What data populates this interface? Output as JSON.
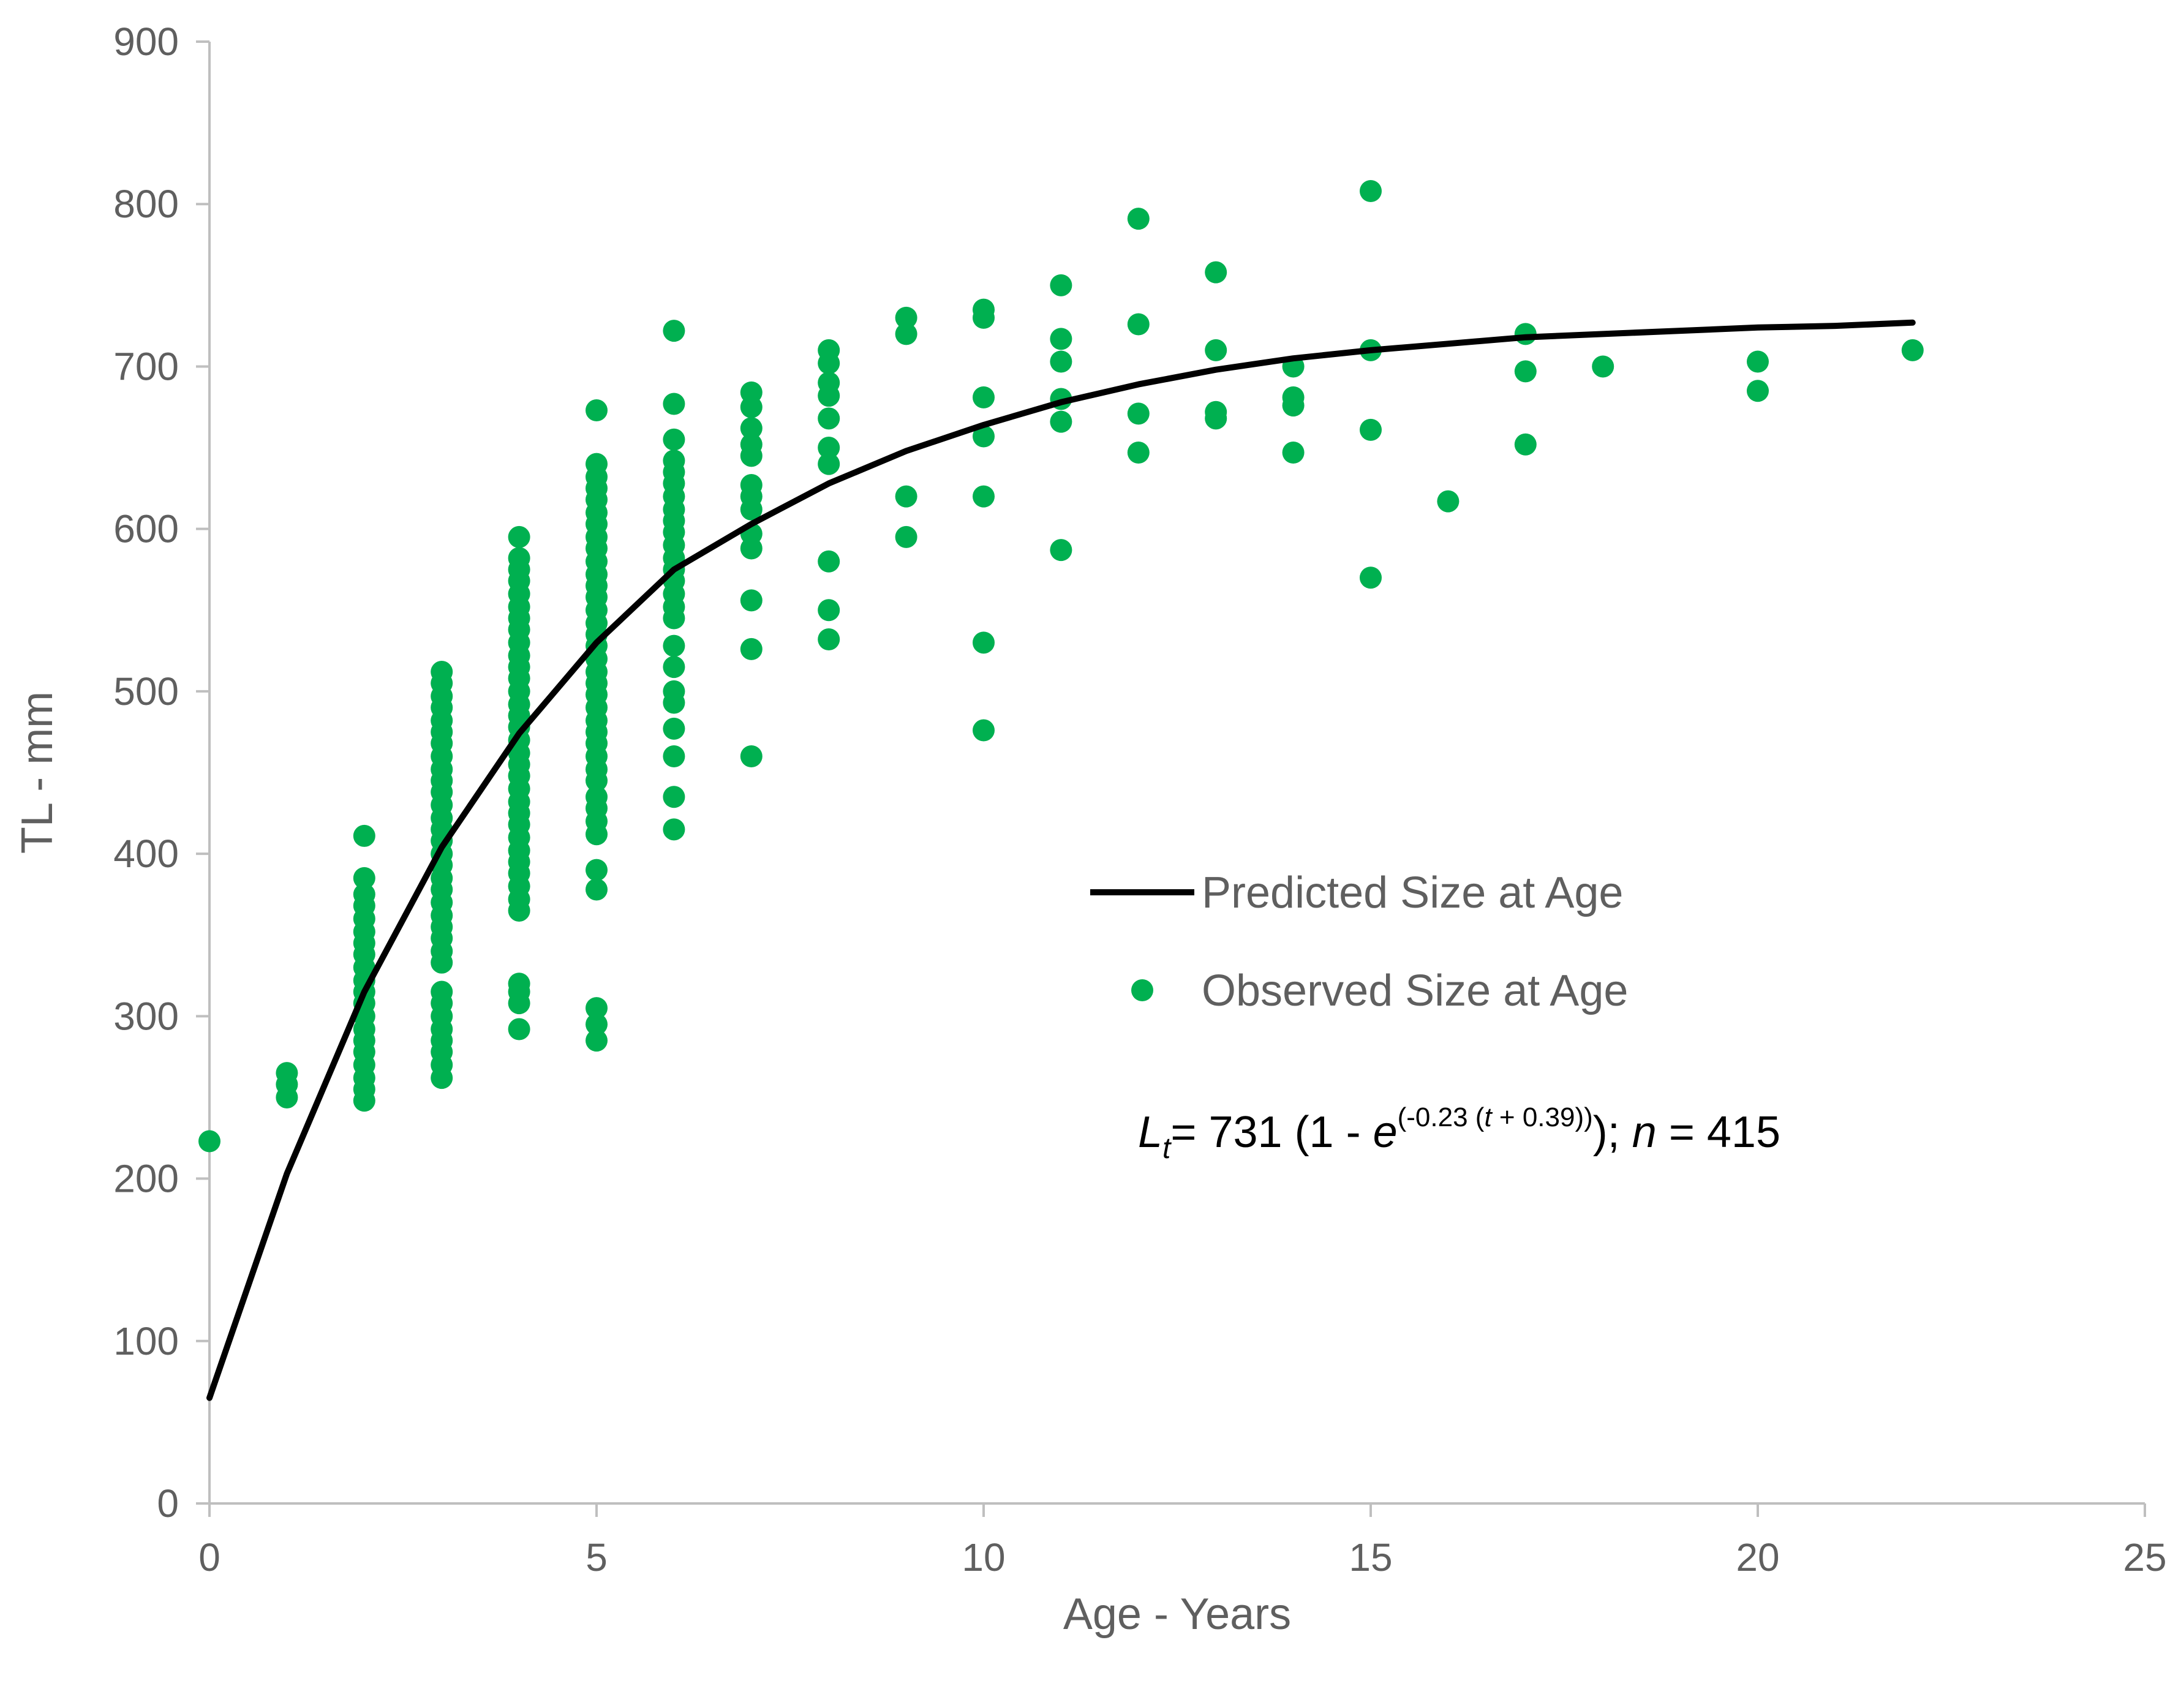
{
  "chart_data": {
    "type": "scatter",
    "title": "",
    "xlabel": "Age - Years",
    "ylabel": "TL - mm",
    "xlim": [
      0,
      25
    ],
    "ylim": [
      0,
      900
    ],
    "x_ticks": [
      "0",
      "5",
      "10",
      "15",
      "20",
      "25"
    ],
    "y_ticks": [
      "0",
      "100",
      "200",
      "300",
      "400",
      "500",
      "600",
      "700",
      "800",
      "900"
    ],
    "grid": false,
    "legend_position": "center-right",
    "colors": {
      "observed": "#00b050",
      "predicted": "#000000",
      "axis": "#bfbfbf",
      "text": "#5f5f5f"
    },
    "legend": {
      "predicted_label": "Predicted Size at Age",
      "observed_label": "Observed Size at Age"
    },
    "equation": {
      "lhs_var": "L",
      "lhs_sub": "t",
      "mid": "= 731 (1 - ",
      "base": "e",
      "exponent_a": "(-0.23 (",
      "exponent_t": "t",
      "exponent_b": " + 0.39))",
      "tail": "); ",
      "n_var": "n",
      "n_value": " = 415"
    },
    "series": [
      {
        "name": "Predicted Size at Age",
        "kind": "line",
        "x": [
          0,
          1,
          2,
          3,
          4,
          5,
          6,
          7,
          8,
          9,
          10,
          11,
          12,
          13,
          14,
          15,
          16,
          17,
          18,
          19,
          20,
          21,
          22
        ],
        "y": [
          65,
          203,
          315,
          404,
          474,
          530,
          575,
          603,
          628,
          648,
          664,
          678,
          689,
          698,
          705,
          710,
          714,
          718,
          720,
          722,
          724,
          725,
          727
        ]
      },
      {
        "name": "Observed Size at Age",
        "kind": "scatter",
        "points": [
          [
            0,
            223
          ],
          [
            1,
            250
          ],
          [
            1,
            258
          ],
          [
            1,
            265
          ],
          [
            2,
            248
          ],
          [
            2,
            255
          ],
          [
            2,
            262
          ],
          [
            2,
            270
          ],
          [
            2,
            278
          ],
          [
            2,
            285
          ],
          [
            2,
            292
          ],
          [
            2,
            300
          ],
          [
            2,
            308
          ],
          [
            2,
            315
          ],
          [
            2,
            322
          ],
          [
            2,
            330
          ],
          [
            2,
            338
          ],
          [
            2,
            345
          ],
          [
            2,
            352
          ],
          [
            2,
            360
          ],
          [
            2,
            368
          ],
          [
            2,
            375
          ],
          [
            2,
            385
          ],
          [
            2,
            411
          ],
          [
            3,
            262
          ],
          [
            3,
            270
          ],
          [
            3,
            278
          ],
          [
            3,
            285
          ],
          [
            3,
            292
          ],
          [
            3,
            300
          ],
          [
            3,
            308
          ],
          [
            3,
            315
          ],
          [
            3,
            333
          ],
          [
            3,
            340
          ],
          [
            3,
            348
          ],
          [
            3,
            355
          ],
          [
            3,
            362
          ],
          [
            3,
            370
          ],
          [
            3,
            378
          ],
          [
            3,
            385
          ],
          [
            3,
            393
          ],
          [
            3,
            400
          ],
          [
            3,
            408
          ],
          [
            3,
            415
          ],
          [
            3,
            422
          ],
          [
            3,
            430
          ],
          [
            3,
            438
          ],
          [
            3,
            445
          ],
          [
            3,
            452
          ],
          [
            3,
            460
          ],
          [
            3,
            468
          ],
          [
            3,
            475
          ],
          [
            3,
            482
          ],
          [
            3,
            490
          ],
          [
            3,
            497
          ],
          [
            3,
            505
          ],
          [
            3,
            512
          ],
          [
            4,
            292
          ],
          [
            4,
            308
          ],
          [
            4,
            315
          ],
          [
            4,
            320
          ],
          [
            4,
            365
          ],
          [
            4,
            372
          ],
          [
            4,
            380
          ],
          [
            4,
            388
          ],
          [
            4,
            395
          ],
          [
            4,
            402
          ],
          [
            4,
            410
          ],
          [
            4,
            418
          ],
          [
            4,
            425
          ],
          [
            4,
            432
          ],
          [
            4,
            440
          ],
          [
            4,
            448
          ],
          [
            4,
            455
          ],
          [
            4,
            462
          ],
          [
            4,
            470
          ],
          [
            4,
            478
          ],
          [
            4,
            485
          ],
          [
            4,
            492
          ],
          [
            4,
            500
          ],
          [
            4,
            508
          ],
          [
            4,
            515
          ],
          [
            4,
            522
          ],
          [
            4,
            530
          ],
          [
            4,
            538
          ],
          [
            4,
            545
          ],
          [
            4,
            552
          ],
          [
            4,
            560
          ],
          [
            4,
            568
          ],
          [
            4,
            575
          ],
          [
            4,
            582
          ],
          [
            4,
            595
          ],
          [
            5,
            285
          ],
          [
            5,
            295
          ],
          [
            5,
            305
          ],
          [
            5,
            378
          ],
          [
            5,
            390
          ],
          [
            5,
            412
          ],
          [
            5,
            420
          ],
          [
            5,
            428
          ],
          [
            5,
            435
          ],
          [
            5,
            445
          ],
          [
            5,
            452
          ],
          [
            5,
            460
          ],
          [
            5,
            468
          ],
          [
            5,
            475
          ],
          [
            5,
            482
          ],
          [
            5,
            490
          ],
          [
            5,
            498
          ],
          [
            5,
            505
          ],
          [
            5,
            512
          ],
          [
            5,
            520
          ],
          [
            5,
            528
          ],
          [
            5,
            535
          ],
          [
            5,
            542
          ],
          [
            5,
            550
          ],
          [
            5,
            558
          ],
          [
            5,
            565
          ],
          [
            5,
            572
          ],
          [
            5,
            580
          ],
          [
            5,
            588
          ],
          [
            5,
            595
          ],
          [
            5,
            603
          ],
          [
            5,
            610
          ],
          [
            5,
            618
          ],
          [
            5,
            625
          ],
          [
            5,
            632
          ],
          [
            5,
            640
          ],
          [
            5,
            673
          ],
          [
            6,
            415
          ],
          [
            6,
            435
          ],
          [
            6,
            460
          ],
          [
            6,
            477
          ],
          [
            6,
            493
          ],
          [
            6,
            500
          ],
          [
            6,
            515
          ],
          [
            6,
            528
          ],
          [
            6,
            545
          ],
          [
            6,
            552
          ],
          [
            6,
            560
          ],
          [
            6,
            568
          ],
          [
            6,
            575
          ],
          [
            6,
            582
          ],
          [
            6,
            590
          ],
          [
            6,
            598
          ],
          [
            6,
            605
          ],
          [
            6,
            612
          ],
          [
            6,
            620
          ],
          [
            6,
            628
          ],
          [
            6,
            635
          ],
          [
            6,
            642
          ],
          [
            6,
            655
          ],
          [
            6,
            677
          ],
          [
            6,
            722
          ],
          [
            7,
            460
          ],
          [
            7,
            526
          ],
          [
            7,
            556
          ],
          [
            7,
            588
          ],
          [
            7,
            597
          ],
          [
            7,
            612
          ],
          [
            7,
            620
          ],
          [
            7,
            627
          ],
          [
            7,
            645
          ],
          [
            7,
            652
          ],
          [
            7,
            662
          ],
          [
            7,
            675
          ],
          [
            7,
            684
          ],
          [
            8,
            532
          ],
          [
            8,
            550
          ],
          [
            8,
            580
          ],
          [
            8,
            640
          ],
          [
            8,
            650
          ],
          [
            8,
            668
          ],
          [
            8,
            682
          ],
          [
            8,
            690
          ],
          [
            8,
            702
          ],
          [
            8,
            710
          ],
          [
            9,
            595
          ],
          [
            9,
            620
          ],
          [
            9,
            720
          ],
          [
            9,
            730
          ],
          [
            10,
            476
          ],
          [
            10,
            530
          ],
          [
            10,
            620
          ],
          [
            10,
            657
          ],
          [
            10,
            681
          ],
          [
            10,
            730
          ],
          [
            10,
            735
          ],
          [
            11,
            587
          ],
          [
            11,
            666
          ],
          [
            11,
            680
          ],
          [
            11,
            703
          ],
          [
            11,
            717
          ],
          [
            11,
            750
          ],
          [
            12,
            647
          ],
          [
            12,
            671
          ],
          [
            12,
            726
          ],
          [
            12,
            791
          ],
          [
            13,
            668
          ],
          [
            13,
            672
          ],
          [
            13,
            710
          ],
          [
            13,
            758
          ],
          [
            14,
            647
          ],
          [
            14,
            676
          ],
          [
            14,
            681
          ],
          [
            14,
            700
          ],
          [
            15,
            570
          ],
          [
            15,
            661
          ],
          [
            15,
            710
          ],
          [
            15,
            808
          ],
          [
            16,
            617
          ],
          [
            17,
            652
          ],
          [
            17,
            697
          ],
          [
            17,
            720
          ],
          [
            18,
            700
          ],
          [
            20,
            685
          ],
          [
            20,
            703
          ],
          [
            22,
            710
          ]
        ]
      }
    ]
  }
}
